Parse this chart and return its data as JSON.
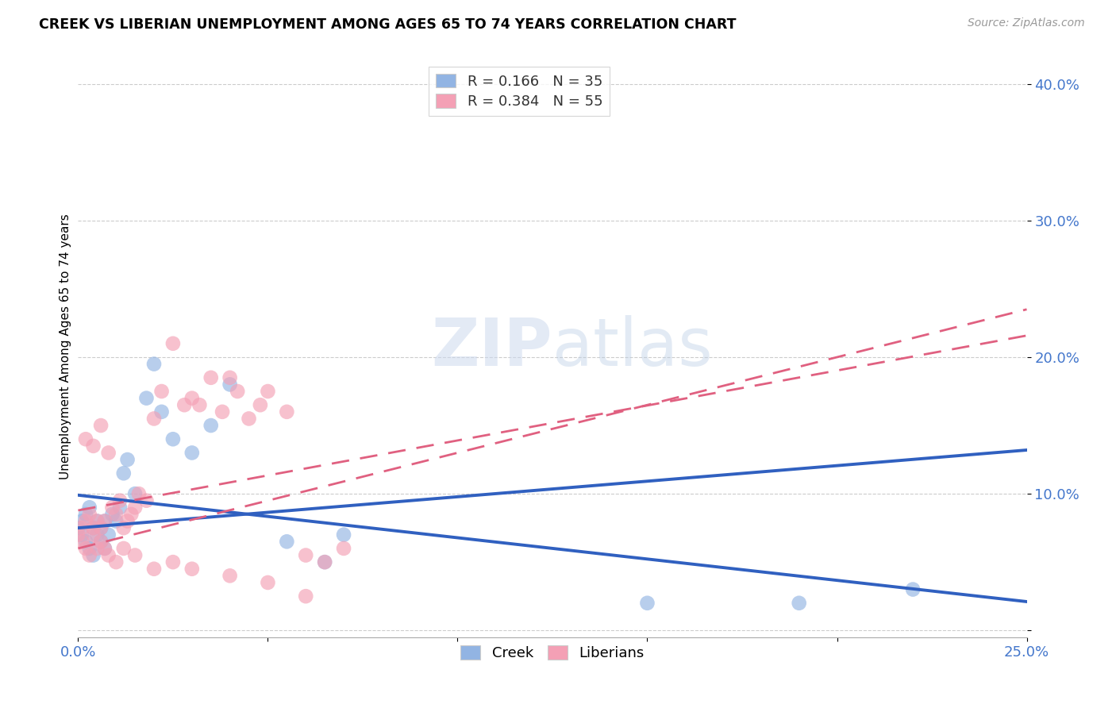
{
  "title": "CREEK VS LIBERIAN UNEMPLOYMENT AMONG AGES 65 TO 74 YEARS CORRELATION CHART",
  "source": "Source: ZipAtlas.com",
  "ylabel": "Unemployment Among Ages 65 to 74 years",
  "xlim": [
    0.0,
    0.25
  ],
  "ylim": [
    -0.005,
    0.42
  ],
  "xticks": [
    0.0,
    0.05,
    0.1,
    0.15,
    0.2,
    0.25
  ],
  "yticks": [
    0.0,
    0.1,
    0.2,
    0.3,
    0.4
  ],
  "xtick_labels": [
    "0.0%",
    "",
    "",
    "",
    "",
    "25.0%"
  ],
  "ytick_labels": [
    "",
    "10.0%",
    "20.0%",
    "30.0%",
    "40.0%"
  ],
  "creek_color": "#92b4e3",
  "liberian_color": "#f4a0b5",
  "creek_line_color": "#3060c0",
  "liberian_line_color": "#e06080",
  "creek_R": 0.166,
  "creek_N": 35,
  "liberian_R": 0.384,
  "liberian_N": 55,
  "watermark_zip": "ZIP",
  "watermark_atlas": "atlas",
  "creek_x": [
    0.0,
    0.001,
    0.001,
    0.002,
    0.002,
    0.003,
    0.003,
    0.004,
    0.004,
    0.005,
    0.005,
    0.006,
    0.006,
    0.007,
    0.007,
    0.008,
    0.009,
    0.01,
    0.011,
    0.012,
    0.013,
    0.015,
    0.018,
    0.02,
    0.022,
    0.025,
    0.03,
    0.035,
    0.04,
    0.055,
    0.065,
    0.07,
    0.15,
    0.19,
    0.22
  ],
  "creek_y": [
    0.075,
    0.07,
    0.08,
    0.065,
    0.085,
    0.06,
    0.09,
    0.055,
    0.075,
    0.07,
    0.08,
    0.065,
    0.075,
    0.06,
    0.08,
    0.07,
    0.085,
    0.08,
    0.09,
    0.115,
    0.125,
    0.1,
    0.17,
    0.195,
    0.16,
    0.14,
    0.13,
    0.15,
    0.18,
    0.065,
    0.05,
    0.07,
    0.02,
    0.02,
    0.03
  ],
  "liberian_x": [
    0.0,
    0.001,
    0.001,
    0.002,
    0.002,
    0.003,
    0.003,
    0.004,
    0.004,
    0.005,
    0.005,
    0.006,
    0.006,
    0.007,
    0.007,
    0.008,
    0.009,
    0.01,
    0.011,
    0.012,
    0.013,
    0.014,
    0.015,
    0.016,
    0.018,
    0.02,
    0.022,
    0.025,
    0.028,
    0.03,
    0.032,
    0.035,
    0.038,
    0.04,
    0.042,
    0.045,
    0.048,
    0.05,
    0.055,
    0.06,
    0.065,
    0.07,
    0.002,
    0.004,
    0.006,
    0.008,
    0.01,
    0.012,
    0.015,
    0.02,
    0.025,
    0.03,
    0.04,
    0.05,
    0.06
  ],
  "liberian_y": [
    0.07,
    0.065,
    0.075,
    0.06,
    0.08,
    0.055,
    0.085,
    0.07,
    0.075,
    0.06,
    0.08,
    0.065,
    0.075,
    0.06,
    0.08,
    0.13,
    0.09,
    0.085,
    0.095,
    0.075,
    0.08,
    0.085,
    0.09,
    0.1,
    0.095,
    0.155,
    0.175,
    0.21,
    0.165,
    0.17,
    0.165,
    0.185,
    0.16,
    0.185,
    0.175,
    0.155,
    0.165,
    0.175,
    0.16,
    0.055,
    0.05,
    0.06,
    0.14,
    0.135,
    0.15,
    0.055,
    0.05,
    0.06,
    0.055,
    0.045,
    0.05,
    0.045,
    0.04,
    0.035,
    0.025
  ]
}
